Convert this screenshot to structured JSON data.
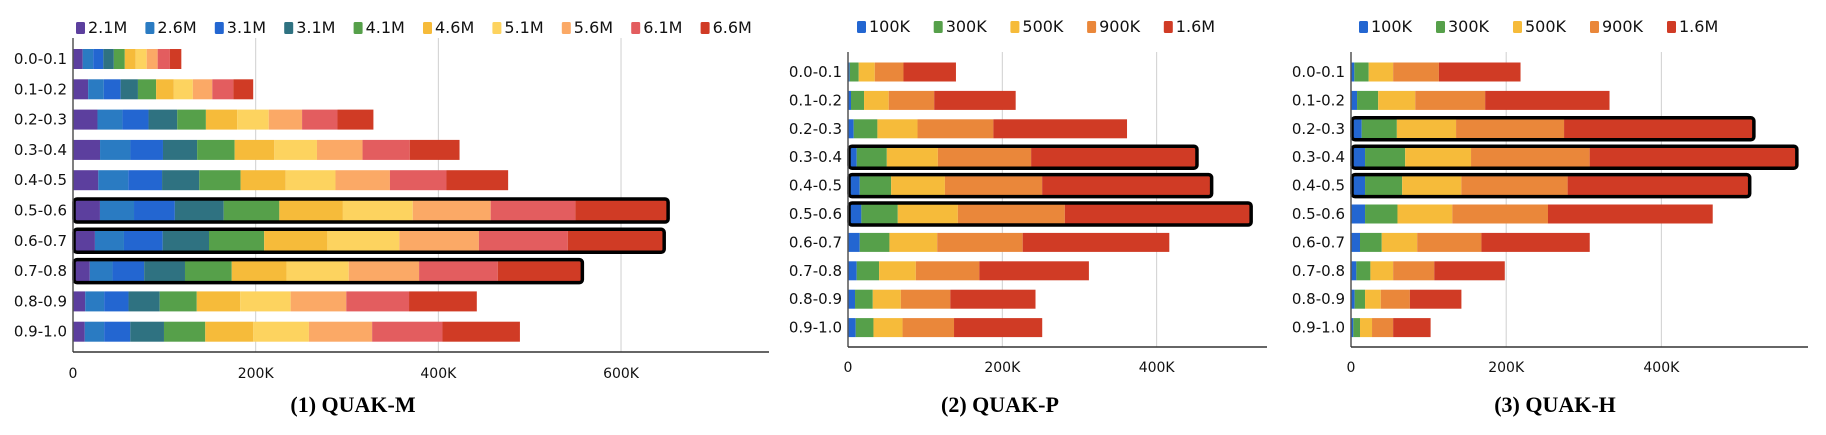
{
  "chart_data": [
    {
      "type": "bar",
      "orientation": "horizontal",
      "stacked": true,
      "title": "(1) QUAK-M",
      "categories": [
        "0.0-0.1",
        "0.1-0.2",
        "0.2-0.3",
        "0.3-0.4",
        "0.4-0.5",
        "0.5-0.6",
        "0.6-0.7",
        "0.7-0.8",
        "0.8-0.9",
        "0.9-1.0"
      ],
      "xlim": [
        0,
        762000
      ],
      "xticks": [
        0,
        200000,
        400000,
        600000
      ],
      "xtick_labels": [
        "0",
        "200K",
        "400K",
        "600K"
      ],
      "grid": true,
      "legend": "top",
      "highlighted_categories": [
        "0.5-0.6",
        "0.6-0.7",
        "0.7-0.8"
      ],
      "series": [
        {
          "name": "2.1M",
          "color": "#5c3f9e",
          "values": [
            10600,
            16600,
            26800,
            29600,
            27700,
            29500,
            24000,
            18400,
            13400,
            12900
          ]
        },
        {
          "name": "2.6M",
          "color": "#2a7bc2",
          "values": [
            11500,
            17100,
            27300,
            33300,
            32800,
            37300,
            31800,
            24900,
            20700,
            21200
          ]
        },
        {
          "name": "3.1M",
          "color": "#2366d1",
          "values": [
            11100,
            18500,
            28600,
            35600,
            37000,
            44700,
            42400,
            34600,
            26700,
            28600
          ]
        },
        {
          "name": "3.1M",
          "color": "#2f7281",
          "values": [
            11500,
            18900,
            31400,
            37400,
            40700,
            53500,
            50700,
            44700,
            34100,
            36900
          ]
        },
        {
          "name": "4.1M",
          "color": "#56a04a",
          "values": [
            12000,
            19900,
            31400,
            41100,
            45300,
            60900,
            60400,
            51200,
            40600,
            45200
          ]
        },
        {
          "name": "4.6M",
          "color": "#f6bb3a",
          "values": [
            12000,
            19400,
            34200,
            43400,
            49400,
            69600,
            69200,
            59900,
            47500,
            52600
          ]
        },
        {
          "name": "5.1M",
          "color": "#fdd35f",
          "values": [
            12000,
            20800,
            34600,
            46700,
            54500,
            76500,
            78800,
            68200,
            55300,
            60900
          ]
        },
        {
          "name": "5.6M",
          "color": "#fba966",
          "values": [
            12000,
            21300,
            36500,
            49900,
            59600,
            85300,
            87100,
            77000,
            60900,
            69200
          ]
        },
        {
          "name": "6.1M",
          "color": "#e35d5f",
          "values": [
            13400,
            23100,
            38800,
            51700,
            61900,
            92700,
            97300,
            86200,
            68700,
            77000
          ]
        },
        {
          "name": "6.6M",
          "color": "#d03b25",
          "values": [
            12500,
            21700,
            39300,
            54500,
            67500,
            101000,
            105000,
            92000,
            74200,
            84800
          ]
        }
      ]
    },
    {
      "type": "bar",
      "orientation": "horizontal",
      "stacked": true,
      "title": "(2) QUAK-P",
      "categories": [
        "0.0-0.1",
        "0.1-0.2",
        "0.2-0.3",
        "0.3-0.4",
        "0.4-0.5",
        "0.5-0.6",
        "0.6-0.7",
        "0.7-0.8",
        "0.8-0.9",
        "0.9-1.0"
      ],
      "xlim": [
        0,
        543000
      ],
      "xticks": [
        0,
        200000,
        400000
      ],
      "xtick_labels": [
        "0",
        "200K",
        "400K"
      ],
      "grid": true,
      "legend": "top",
      "highlighted_categories": [
        "0.3-0.4",
        "0.4-0.5",
        "0.5-0.6"
      ],
      "series": [
        {
          "name": "100K",
          "color": "#2366d1",
          "values": [
            2200,
            3900,
            7400,
            11300,
            15200,
            17300,
            15200,
            11300,
            9100,
            10000
          ]
        },
        {
          "name": "300K",
          "color": "#56a04a",
          "values": [
            11700,
            16900,
            30700,
            39000,
            40700,
            47200,
            38500,
            29000,
            23000,
            23000
          ]
        },
        {
          "name": "500K",
          "color": "#f6bb3a",
          "values": [
            20800,
            32000,
            52000,
            66200,
            69700,
            77900,
            61900,
            47600,
            36400,
            37700
          ]
        },
        {
          "name": "900K",
          "color": "#ea873a",
          "values": [
            37200,
            58900,
            98300,
            120800,
            126000,
            138600,
            110800,
            82300,
            64100,
            66700
          ]
        },
        {
          "name": "1.6M",
          "color": "#d03b25",
          "values": [
            68000,
            105600,
            173200,
            214300,
            219000,
            240800,
            190000,
            142000,
            110400,
            114300
          ]
        }
      ]
    },
    {
      "type": "bar",
      "orientation": "horizontal",
      "stacked": true,
      "title": "(3) QUAK-H",
      "categories": [
        "0.0-0.1",
        "0.1-0.2",
        "0.2-0.3",
        "0.3-0.4",
        "0.4-0.5",
        "0.5-0.6",
        "0.6-0.7",
        "0.7-0.8",
        "0.8-0.9",
        "0.9-1.0"
      ],
      "xlim": [
        0,
        589000
      ],
      "xticks": [
        0,
        200000,
        400000
      ],
      "xtick_labels": [
        "0",
        "200K",
        "400K"
      ],
      "grid": true,
      "legend": "top",
      "highlighted_categories": [
        "0.2-0.3",
        "0.3-0.4",
        "0.4-0.5"
      ],
      "series": [
        {
          "name": "100K",
          "color": "#2366d1",
          "values": [
            4300,
            7800,
            13800,
            18100,
            18100,
            18100,
            11600,
            6900,
            4700,
            3000
          ]
        },
        {
          "name": "300K",
          "color": "#56a04a",
          "values": [
            18500,
            27200,
            45300,
            51700,
            47800,
            41800,
            28000,
            18100,
            13400,
            8600
          ]
        },
        {
          "name": "500K",
          "color": "#f6bb3a",
          "values": [
            31500,
            47800,
            76300,
            84900,
            76300,
            70700,
            45700,
            29300,
            20300,
            15500
          ]
        },
        {
          "name": "900K",
          "color": "#ea873a",
          "values": [
            59000,
            90100,
            139200,
            152900,
            137000,
            123300,
            82800,
            53000,
            37500,
            27200
          ]
        },
        {
          "name": "1.6M",
          "color": "#d03b25",
          "values": [
            105200,
            160300,
            244000,
            266400,
            234000,
            212300,
            139600,
            90900,
            66400,
            48300
          ]
        }
      ]
    }
  ]
}
